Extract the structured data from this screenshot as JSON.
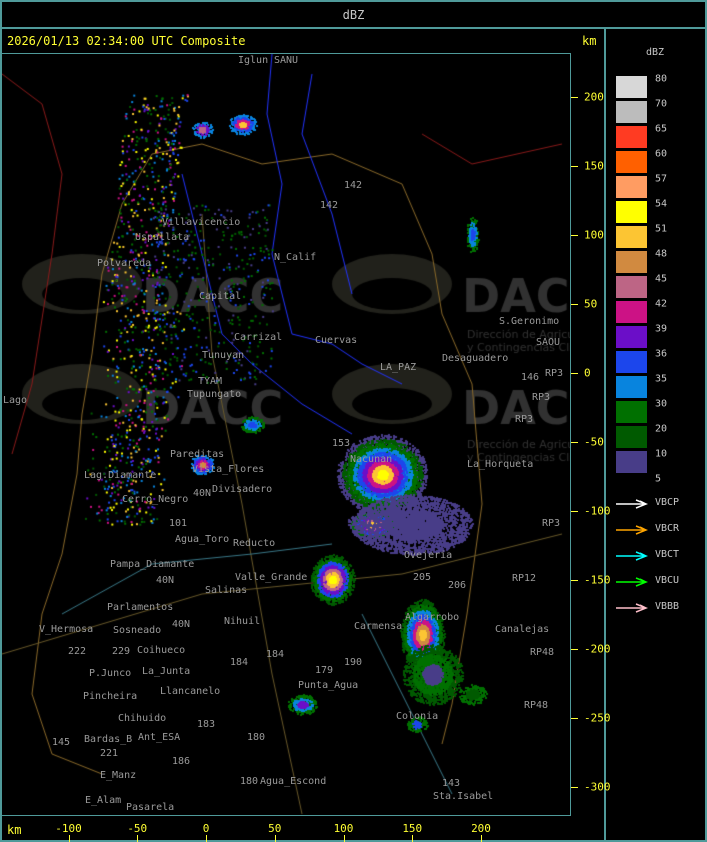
{
  "header": {
    "title": "dBZ"
  },
  "map": {
    "title": "2026/01/13 02:34:00 UTC Composite",
    "unit_top": "km",
    "unit_bottom": "km",
    "x_ticks": [
      "-100",
      "-50",
      "0",
      "50",
      "100",
      "150",
      "200"
    ],
    "x_tick_values": [
      -100,
      -50,
      0,
      50,
      100,
      150,
      200
    ],
    "y_ticks": [
      "200",
      "150",
      "100",
      "50",
      "0",
      "-50",
      "-100",
      "-150",
      "-200",
      "-250",
      "-300"
    ],
    "y_tick_values": [
      200,
      150,
      100,
      50,
      0,
      -50,
      -100,
      -150,
      -200,
      -250,
      -300
    ],
    "watermark": {
      "brand": "DACC",
      "line1": "Dirección de Agricultura",
      "line2": "y Contingencias Climáticas"
    },
    "places": [
      "Iglun",
      "SANU",
      "Uspallata",
      "Polvareda",
      "Villavicencio",
      "N_Calif",
      "Capital",
      "Carrizal",
      "Cuervas",
      "S.Geronimo",
      "SAOU",
      "Desaguadero",
      "LA_PAZ",
      "RP3",
      "RP3",
      "RP3",
      "146",
      "142",
      "142",
      "Tupungato",
      "TYAM",
      "Tunuyan",
      "Pareditas",
      "Vista_Flores",
      "Lag.Diamante",
      "Cerro_Negro",
      "Divisadero",
      "153",
      "Nacunan",
      "La_Horqueta",
      "40N",
      "101",
      "Agua_Toro",
      "Reducto",
      "Ovejeria",
      "205",
      "206",
      "RP12",
      "RP3",
      "Pampa_Diamante",
      "Valle_Grande",
      "Salinas",
      "Parlamentos",
      "Sosneado",
      "Coihueco",
      "Nihuil",
      "V_Hermosa",
      "222",
      "P.Junco",
      "Pincheira",
      "La_Junta",
      "Chihuido",
      "Llancanelo",
      "Ant_ESA",
      "Punta_Agua",
      "Carmensa",
      "Algarrobo",
      "Canalejas",
      "RP48",
      "RP48",
      "Colonia",
      "Bardas_B",
      "E_Manz",
      "E_Alam",
      "Pasarela",
      "Agua_Escond",
      "Sta.Isabel",
      "143",
      "180",
      "184",
      "184",
      "179",
      "190",
      "183",
      "186",
      "145",
      "40N",
      "40N",
      "221",
      "229",
      "180",
      "Lago"
    ],
    "legend_title": "dBZ"
  },
  "legend": {
    "title": "dBZ",
    "levels": [
      "80",
      "70",
      "65",
      "60",
      "57",
      "54",
      "51",
      "48",
      "45",
      "42",
      "39",
      "36",
      "35",
      "30",
      "20",
      "10",
      "5"
    ],
    "colors": [
      "#d7d7d7",
      "#bcbcbc",
      "#ff3b22",
      "#ff6000",
      "#ff9c62",
      "#ffff00",
      "#fcc533",
      "#d18a40",
      "#bd6585",
      "#cc1285",
      "#6b0ec8",
      "#1c46ec",
      "#0884de",
      "#007000",
      "#005a00",
      "#483d88"
    ],
    "radars": [
      {
        "name": "VBCP",
        "color": "#ffffff"
      },
      {
        "name": "VBCR",
        "color": "#ffa500"
      },
      {
        "name": "VBCT",
        "color": "#00ffff"
      },
      {
        "name": "VBCU",
        "color": "#00ff00"
      },
      {
        "name": "VBBB",
        "color": "#ffc0cb"
      }
    ]
  }
}
